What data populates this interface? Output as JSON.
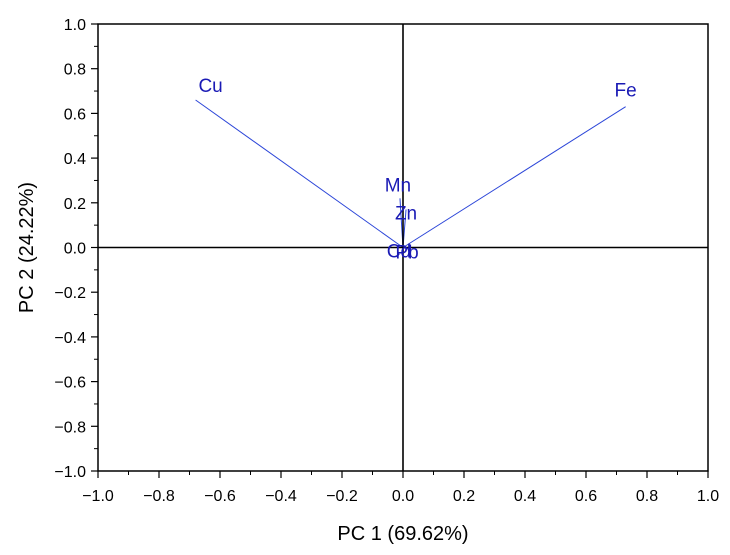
{
  "chart_data": {
    "type": "scatter",
    "subtype": "pca-loading-biplot",
    "title": "",
    "xlabel": "PC 1 (69.62%)",
    "ylabel": "PC 2 (24.22%)",
    "xlim": [
      -1.0,
      1.0
    ],
    "ylim": [
      -1.0,
      1.0
    ],
    "xticks": [
      "−1.0",
      "−0.8",
      "−0.6",
      "−0.4",
      "−0.2",
      "0.0",
      "0.2",
      "0.4",
      "0.6",
      "0.8",
      "1.0"
    ],
    "yticks": [
      "1.0",
      "0.8",
      "0.6",
      "0.4",
      "0.2",
      "0.0",
      "−0.2",
      "−0.4",
      "−0.6",
      "−0.8",
      "−1.0"
    ],
    "grid": false,
    "reference_lines": [
      "x=0",
      "y=0"
    ],
    "vector_color": "#2b45d8",
    "label_color": "#1a1ab5",
    "variables": [
      {
        "name": "Cu",
        "x": -0.68,
        "y": 0.66
      },
      {
        "name": "Fe",
        "x": 0.73,
        "y": 0.63
      },
      {
        "name": "Mn",
        "x": -0.01,
        "y": 0.22
      },
      {
        "name": "Zn",
        "x": 0.01,
        "y": 0.17
      },
      {
        "name": "Cd",
        "x": -0.01,
        "y": 0.01
      },
      {
        "name": "Pb",
        "x": 0.01,
        "y": 0.0
      }
    ]
  }
}
